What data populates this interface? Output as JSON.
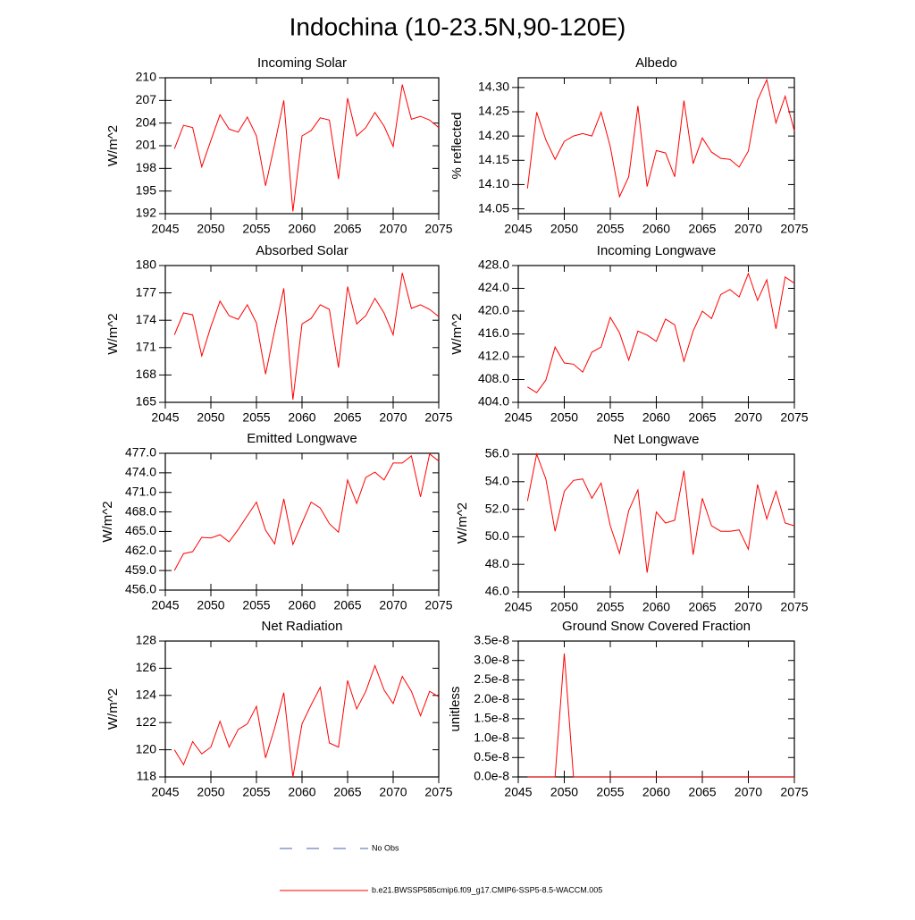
{
  "title": "Indochina (10-23.5N,90-120E)",
  "legend": [
    {
      "name": "No Obs",
      "color": "#4a5fb0",
      "dash": true
    },
    {
      "name": "b.e21.BWSSP585cmip6.f09_g17.CMIP6-SSP5-8.5-WACCM.005",
      "color": "#ff0000",
      "dash": false
    }
  ],
  "chart_data": [
    {
      "type": "line",
      "title": "Incoming Solar",
      "y_label": "W/m^2",
      "color": "#ff0000",
      "x": [
        2046,
        2047,
        2048,
        2049,
        2050,
        2051,
        2052,
        2053,
        2054,
        2055,
        2056,
        2057,
        2058,
        2059,
        2060,
        2061,
        2062,
        2063,
        2064,
        2065,
        2066,
        2067,
        2068,
        2069,
        2070,
        2071,
        2072,
        2073,
        2074,
        2075
      ],
      "values": [
        200.6,
        203.7,
        203.4,
        198.2,
        201.7,
        205.1,
        203.2,
        202.8,
        204.8,
        202.3,
        195.7,
        201.2,
        207.0,
        192.3,
        202.3,
        203.0,
        204.7,
        204.4,
        196.6,
        207.3,
        202.3,
        203.4,
        205.4,
        203.6,
        200.9,
        209.1,
        204.5,
        204.9,
        204.4,
        203.4
      ],
      "xlim": [
        2045,
        2075
      ],
      "xticks": [
        2045,
        2050,
        2055,
        2060,
        2065,
        2070,
        2075
      ],
      "ylim": [
        192,
        210
      ],
      "yticks": [
        192,
        195,
        198,
        201,
        204,
        207,
        210
      ]
    },
    {
      "type": "line",
      "title": "Albedo",
      "y_label": "% reflected",
      "color": "#ff0000",
      "x": [
        2046,
        2047,
        2048,
        2049,
        2050,
        2051,
        2052,
        2053,
        2054,
        2055,
        2056,
        2057,
        2058,
        2059,
        2060,
        2061,
        2062,
        2063,
        2064,
        2065,
        2066,
        2067,
        2068,
        2069,
        2070,
        2071,
        2072,
        2073,
        2074,
        2075
      ],
      "values": [
        14.092,
        14.249,
        14.192,
        14.152,
        14.189,
        14.2,
        14.205,
        14.2,
        14.249,
        14.178,
        14.075,
        14.116,
        14.262,
        14.096,
        14.17,
        14.165,
        14.116,
        14.273,
        14.143,
        14.196,
        14.167,
        14.154,
        14.152,
        14.136,
        14.169,
        14.274,
        14.316,
        14.227,
        14.282,
        14.21
      ],
      "xlim": [
        2045,
        2075
      ],
      "xticks": [
        2045,
        2050,
        2055,
        2060,
        2065,
        2070,
        2075
      ],
      "ylim": [
        14.04,
        14.32
      ],
      "yticks": [
        14.05,
        {
          "value": 14.1,
          "label": "14.10"
        },
        14.15,
        {
          "value": 14.2,
          "label": "14.20"
        },
        14.25,
        {
          "value": 14.3,
          "label": "14.30"
        }
      ]
    },
    {
      "type": "line",
      "title": "Absorbed Solar",
      "y_label": "W/m^2",
      "color": "#ff0000",
      "x": [
        2046,
        2047,
        2048,
        2049,
        2050,
        2051,
        2052,
        2053,
        2054,
        2055,
        2056,
        2057,
        2058,
        2059,
        2060,
        2061,
        2062,
        2063,
        2064,
        2065,
        2066,
        2067,
        2068,
        2069,
        2070,
        2071,
        2072,
        2073,
        2074,
        2075
      ],
      "values": [
        172.4,
        174.8,
        174.6,
        170.1,
        173.3,
        176.1,
        174.5,
        174.1,
        175.7,
        173.7,
        168.1,
        172.9,
        177.5,
        165.3,
        173.6,
        174.2,
        175.7,
        175.2,
        168.8,
        177.7,
        173.6,
        174.5,
        176.4,
        174.8,
        172.4,
        179.2,
        175.3,
        175.7,
        175.2,
        174.4
      ],
      "xlim": [
        2045,
        2075
      ],
      "xticks": [
        2045,
        2050,
        2055,
        2060,
        2065,
        2070,
        2075
      ],
      "ylim": [
        165,
        180
      ],
      "yticks": [
        165,
        168,
        171,
        174,
        177,
        180
      ]
    },
    {
      "type": "line",
      "title": "Incoming Longwave",
      "y_label": "W/m^2",
      "color": "#ff0000",
      "x": [
        2046,
        2047,
        2048,
        2049,
        2050,
        2051,
        2052,
        2053,
        2054,
        2055,
        2056,
        2057,
        2058,
        2059,
        2060,
        2061,
        2062,
        2063,
        2064,
        2065,
        2066,
        2067,
        2068,
        2069,
        2070,
        2071,
        2072,
        2073,
        2074,
        2075
      ],
      "values": [
        406.7,
        405.7,
        407.9,
        413.7,
        410.9,
        410.7,
        409.3,
        412.8,
        413.7,
        418.9,
        416.2,
        411.4,
        416.5,
        415.8,
        414.7,
        418.6,
        417.6,
        411.2,
        416.5,
        420.0,
        418.7,
        422.9,
        423.8,
        422.5,
        426.6,
        421.9,
        425.5,
        416.9,
        426.0,
        424.9
      ],
      "xlim": [
        2045,
        2075
      ],
      "xticks": [
        2045,
        2050,
        2055,
        2060,
        2065,
        2070,
        2075
      ],
      "ylim": [
        404,
        428
      ],
      "yticks": [
        {
          "value": 404,
          "label": "404.0"
        },
        {
          "value": 408,
          "label": "408.0"
        },
        {
          "value": 412,
          "label": "412.0"
        },
        {
          "value": 416,
          "label": "416.0"
        },
        {
          "value": 420,
          "label": "420.0"
        },
        {
          "value": 424,
          "label": "424.0"
        },
        {
          "value": 428,
          "label": "428.0"
        }
      ]
    },
    {
      "type": "line",
      "title": "Emitted Longwave",
      "y_label": "W/m^2",
      "color": "#ff0000",
      "x": [
        2046,
        2047,
        2048,
        2049,
        2050,
        2051,
        2052,
        2053,
        2054,
        2055,
        2056,
        2057,
        2058,
        2059,
        2060,
        2061,
        2062,
        2063,
        2064,
        2065,
        2066,
        2067,
        2068,
        2069,
        2070,
        2071,
        2072,
        2073,
        2074,
        2075
      ],
      "values": [
        459.0,
        461.6,
        461.9,
        464.1,
        464.0,
        464.5,
        463.4,
        465.3,
        467.4,
        469.5,
        465.2,
        463.1,
        470.0,
        463.0,
        466.3,
        469.5,
        468.6,
        466.2,
        464.9,
        472.9,
        469.3,
        473.3,
        474.1,
        472.9,
        475.5,
        475.5,
        476.6,
        470.3,
        476.9,
        475.8
      ],
      "xlim": [
        2045,
        2075
      ],
      "xticks": [
        2045,
        2050,
        2055,
        2060,
        2065,
        2070,
        2075
      ],
      "ylim": [
        456,
        477
      ],
      "yticks": [
        {
          "value": 456,
          "label": "456.0"
        },
        {
          "value": 459,
          "label": "459.0"
        },
        {
          "value": 462,
          "label": "462.0"
        },
        {
          "value": 465,
          "label": "465.0"
        },
        {
          "value": 468,
          "label": "468.0"
        },
        {
          "value": 471,
          "label": "471.0"
        },
        {
          "value": 474,
          "label": "474.0"
        },
        {
          "value": 477,
          "label": "477.0"
        }
      ]
    },
    {
      "type": "line",
      "title": "Net Longwave",
      "y_label": "W/m^2",
      "color": "#ff0000",
      "x": [
        2046,
        2047,
        2048,
        2049,
        2050,
        2051,
        2052,
        2053,
        2054,
        2055,
        2056,
        2057,
        2058,
        2059,
        2060,
        2061,
        2062,
        2063,
        2064,
        2065,
        2066,
        2067,
        2068,
        2069,
        2070,
        2071,
        2072,
        2073,
        2074,
        2075
      ],
      "values": [
        52.6,
        56.0,
        54.2,
        50.4,
        53.3,
        54.1,
        54.2,
        52.8,
        53.9,
        50.8,
        48.8,
        51.9,
        53.4,
        47.4,
        51.8,
        51.0,
        51.2,
        54.8,
        48.7,
        52.8,
        50.8,
        50.4,
        50.4,
        50.5,
        49.1,
        53.8,
        51.3,
        53.3,
        51.0,
        50.8
      ],
      "xlim": [
        2045,
        2075
      ],
      "xticks": [
        2045,
        2050,
        2055,
        2060,
        2065,
        2070,
        2075
      ],
      "ylim": [
        46,
        56
      ],
      "yticks": [
        {
          "value": 46,
          "label": "46.0"
        },
        {
          "value": 48,
          "label": "48.0"
        },
        {
          "value": 50,
          "label": "50.0"
        },
        {
          "value": 52,
          "label": "52.0"
        },
        {
          "value": 54,
          "label": "54.0"
        },
        {
          "value": 56,
          "label": "56.0"
        }
      ]
    },
    {
      "type": "line",
      "title": "Net Radiation",
      "y_label": "W/m^2",
      "color": "#ff0000",
      "x": [
        2046,
        2047,
        2048,
        2049,
        2050,
        2051,
        2052,
        2053,
        2054,
        2055,
        2056,
        2057,
        2058,
        2059,
        2060,
        2061,
        2062,
        2063,
        2064,
        2065,
        2066,
        2067,
        2068,
        2069,
        2070,
        2071,
        2072,
        2073,
        2074,
        2075
      ],
      "values": [
        120.0,
        118.9,
        120.6,
        119.7,
        120.2,
        122.1,
        120.2,
        121.5,
        121.9,
        123.2,
        119.4,
        121.6,
        124.2,
        118.0,
        121.9,
        123.3,
        124.6,
        120.5,
        120.2,
        125.1,
        123.0,
        124.3,
        126.2,
        124.4,
        123.4,
        125.4,
        124.3,
        122.5,
        124.3,
        123.9
      ],
      "xlim": [
        2045,
        2075
      ],
      "xticks": [
        2045,
        2050,
        2055,
        2060,
        2065,
        2070,
        2075
      ],
      "ylim": [
        118,
        128
      ],
      "yticks": [
        118,
        120,
        122,
        124,
        126,
        128
      ]
    },
    {
      "type": "line",
      "title": "Ground Snow Covered Fraction",
      "y_label": "unitless",
      "color": "#ff0000",
      "x": [
        2046,
        2047,
        2048,
        2049,
        2050,
        2051,
        2052,
        2053,
        2054,
        2055,
        2056,
        2057,
        2058,
        2059,
        2060,
        2061,
        2062,
        2063,
        2064,
        2065,
        2066,
        2067,
        2068,
        2069,
        2070,
        2071,
        2072,
        2073,
        2074,
        2075
      ],
      "values": [
        0,
        0,
        0,
        0,
        3.18e-08,
        0,
        0,
        0,
        0,
        0,
        0,
        0,
        0,
        0,
        0,
        0,
        0,
        0,
        0,
        0,
        0,
        0,
        0,
        0,
        0,
        0,
        0,
        0,
        0,
        0
      ],
      "xlim": [
        2045,
        2075
      ],
      "xticks": [
        2045,
        2050,
        2055,
        2060,
        2065,
        2070,
        2075
      ],
      "ylim": [
        0,
        3.5e-08
      ],
      "yticks": [
        {
          "value": 0,
          "label": "0.0e-8"
        },
        {
          "value": 5e-09,
          "label": "0.5e-8"
        },
        {
          "value": 1e-08,
          "label": "1.0e-8"
        },
        {
          "value": 1.5e-08,
          "label": "1.5e-8"
        },
        {
          "value": 2e-08,
          "label": "2.0e-8"
        },
        {
          "value": 2.5e-08,
          "label": "2.5e-8"
        },
        {
          "value": 3e-08,
          "label": "3.0e-8"
        },
        {
          "value": 3.5e-08,
          "label": "3.5e-8"
        }
      ]
    }
  ]
}
